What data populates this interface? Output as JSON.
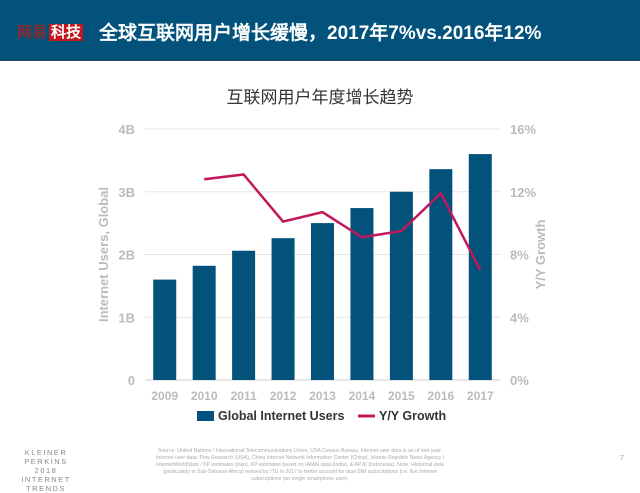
{
  "header": {
    "logo_part1": "网易",
    "logo_part2": "科技",
    "title": "全球互联网用户增长缓慢，2017年7%vs.2016年12%"
  },
  "chart_data": {
    "type": "bar+line",
    "title": "互联网用户年度增长趋势",
    "categories": [
      "2009",
      "2010",
      "2011",
      "2012",
      "2013",
      "2014",
      "2015",
      "2016",
      "2017"
    ],
    "series": [
      {
        "name": "Global Internet Users",
        "type": "bar",
        "axis": "left",
        "color": "#02527c",
        "values": [
          1.6,
          1.82,
          2.06,
          2.26,
          2.5,
          2.74,
          3.0,
          3.36,
          3.6
        ]
      },
      {
        "name": "Y/Y Growth",
        "type": "line",
        "axis": "right",
        "color": "#c2185b",
        "values": [
          null,
          12.8,
          13.1,
          10.1,
          10.7,
          9.1,
          9.5,
          11.9,
          7.0
        ]
      }
    ],
    "ylabel": "Internet Users, Global",
    "y2label": "Y/Y Growth",
    "ylim": [
      0,
      4
    ],
    "yticks": [
      "0",
      "1B",
      "2B",
      "3B",
      "4B"
    ],
    "y2lim": [
      0,
      16
    ],
    "y2ticks": [
      "0%",
      "4%",
      "8%",
      "12%",
      "16%"
    ],
    "grid": true,
    "legend": "bottom"
  },
  "footer": {
    "brand": [
      "KLEINER PERKINS",
      "2018",
      "INTERNET TRENDS"
    ],
    "source": "Source: United Nations / International Telecommunications Union, USA Census Bureau. Internet user data is as of mid-year. Internet user data: Pew Research (USA), China Internet Network Information Center (China), Islamic Republic News Agency / InternetWorldStats / KP estimates (Iran), KP estimates based on IAMAI data (India), & APJII (Indonesia). Note: Historical data (particularly in Sub-Saharan Africa) revised by ITU in 2017 to better account for dual SIM subscriptions (i.e. five Internet subscriptions per single smartphone user).",
    "page": "7"
  }
}
